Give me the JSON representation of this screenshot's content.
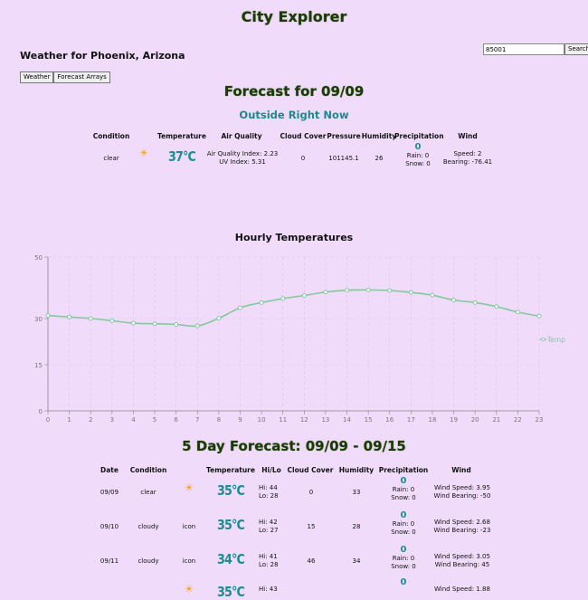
{
  "app": {
    "title": "City Explorer"
  },
  "search": {
    "value": "85001",
    "button": "Search"
  },
  "location": {
    "title": "Weather for Phoenix, Arizona"
  },
  "tabs": [
    "Weather",
    "Forecast Arrays"
  ],
  "forecast": {
    "title": "Forecast for 09/09",
    "now_title": "Outside Right Now"
  },
  "current": {
    "headers": {
      "condition": "Condition",
      "temperature": "Temperature",
      "air_quality": "Air Quality",
      "cloud_cover": "Cloud Cover",
      "pressure": "Pressure",
      "humidity": "Humidity",
      "precipitation": "Precipitation",
      "wind": "Wind"
    },
    "condition": "clear",
    "condition_icon": "sun-icon",
    "temperature": "37°C",
    "air_quality_index": "Air Quality Index: 2.23",
    "uv_index": "UV Index: 5.31",
    "cloud_cover": "0",
    "pressure": "101145.1",
    "humidity": "26",
    "precip_value": "0",
    "rain": "Rain: 0",
    "snow": "Snow: 0",
    "wind_speed": "Speed: 2",
    "wind_bearing": "Bearing: -76.41"
  },
  "hourly": {
    "title": "Hourly Temperatures",
    "legend": "Temp",
    "color": "#82ca9d"
  },
  "chart_data": {
    "type": "line",
    "title": "Hourly Temperatures",
    "x": [
      0,
      1,
      2,
      3,
      4,
      5,
      6,
      7,
      8,
      9,
      10,
      11,
      12,
      13,
      14,
      15,
      16,
      17,
      18,
      19,
      20,
      21,
      22,
      23
    ],
    "series": [
      {
        "name": "Temp",
        "values": [
          31,
          30.5,
          30,
          29.3,
          28.5,
          28.3,
          28.1,
          27.6,
          30.1,
          33.5,
          35.2,
          36.5,
          37.5,
          38.6,
          39.2,
          39.3,
          39.1,
          38.5,
          37.6,
          36,
          35.2,
          33.9,
          32.1,
          30.8
        ]
      }
    ],
    "ylim": [
      0,
      50
    ],
    "yticks": [
      0,
      15,
      30,
      50
    ],
    "grid": true,
    "legend_position": "right"
  },
  "fiveday": {
    "title": "5 Day Forecast: 09/09 - 09/15",
    "headers": {
      "date": "Date",
      "condition": "Condition",
      "temperature": "Temperature",
      "hilo": "Hi/Lo",
      "cloud_cover": "Cloud Cover",
      "humidity": "Humidity",
      "precipitation": "Precipitation",
      "wind": "Wind"
    },
    "rows": [
      {
        "date": "09/09",
        "condition": "clear",
        "icon_text": "",
        "icon": "sun-icon",
        "temp": "35°C",
        "hi": "Hi: 44",
        "lo": "Lo: 28",
        "cloud": "0",
        "humidity": "33",
        "precip": "0",
        "rain": "Rain: 0",
        "snow": "Snow: 0",
        "wind_speed": "Wind Speed: 3.95",
        "wind_bearing": "Wind Bearing: -50"
      },
      {
        "date": "09/10",
        "condition": "cloudy",
        "icon_text": "icon",
        "icon": "",
        "temp": "35°C",
        "hi": "Hi: 42",
        "lo": "Lo: 27",
        "cloud": "15",
        "humidity": "28",
        "precip": "0",
        "rain": "Rain: 0",
        "snow": "Snow: 0",
        "wind_speed": "Wind Speed: 2.68",
        "wind_bearing": "Wind Bearing: -23"
      },
      {
        "date": "09/11",
        "condition": "cloudy",
        "icon_text": "icon",
        "icon": "",
        "temp": "34°C",
        "hi": "Hi: 41",
        "lo": "Lo: 28",
        "cloud": "46",
        "humidity": "34",
        "precip": "0",
        "rain": "Rain: 0",
        "snow": "Snow: 0",
        "wind_speed": "Wind Speed: 3.05",
        "wind_bearing": "Wind Bearing: 45"
      },
      {
        "date": "",
        "condition": "",
        "icon_text": "",
        "icon": "sun-icon",
        "temp": "35°C",
        "hi": "Hi: 43",
        "lo": "",
        "cloud": "",
        "humidity": "",
        "precip": "0",
        "rain": "",
        "snow": "",
        "wind_speed": "Wind Speed: 1.88",
        "wind_bearing": ""
      }
    ]
  }
}
